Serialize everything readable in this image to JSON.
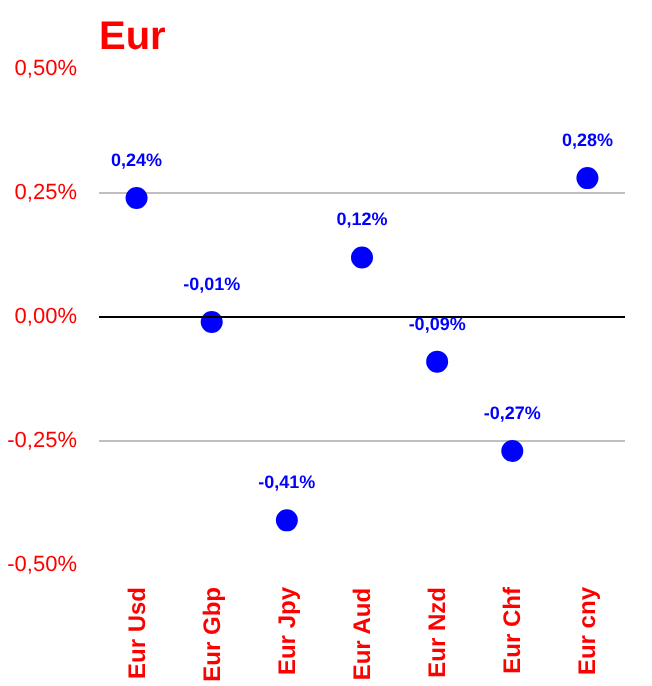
{
  "chart_data": {
    "type": "scatter",
    "title": "Eur",
    "categories": [
      "Eur Usd",
      "Eur Gbp",
      "Eur Jpy",
      "Eur Aud",
      "Eur Nzd",
      "Eur Chf",
      "Eur cny"
    ],
    "series": [
      {
        "color": "#0000ff",
        "values": [
          0.24,
          -0.01,
          -0.41,
          0.12,
          -0.09,
          -0.27,
          0.28
        ],
        "value_labels": [
          "0,24%",
          "-0,01%",
          "-0,41%",
          "0,12%",
          "-0,09%",
          "-0,27%",
          "0,28%"
        ]
      }
    ],
    "ylim": [
      -0.5,
      0.5
    ],
    "yticks": [
      {
        "value": -0.5,
        "label": "-0,50%"
      },
      {
        "value": -0.25,
        "label": "-0,25%"
      },
      {
        "value": 0,
        "label": "0,00%"
      },
      {
        "value": 0.25,
        "label": "0,25%"
      },
      {
        "value": 0.5,
        "label": "0,50%"
      }
    ],
    "grid": "y",
    "marker": "circle",
    "ref_lines": [
      {
        "axis": "y",
        "value": 0,
        "color": "#000000"
      }
    ]
  }
}
